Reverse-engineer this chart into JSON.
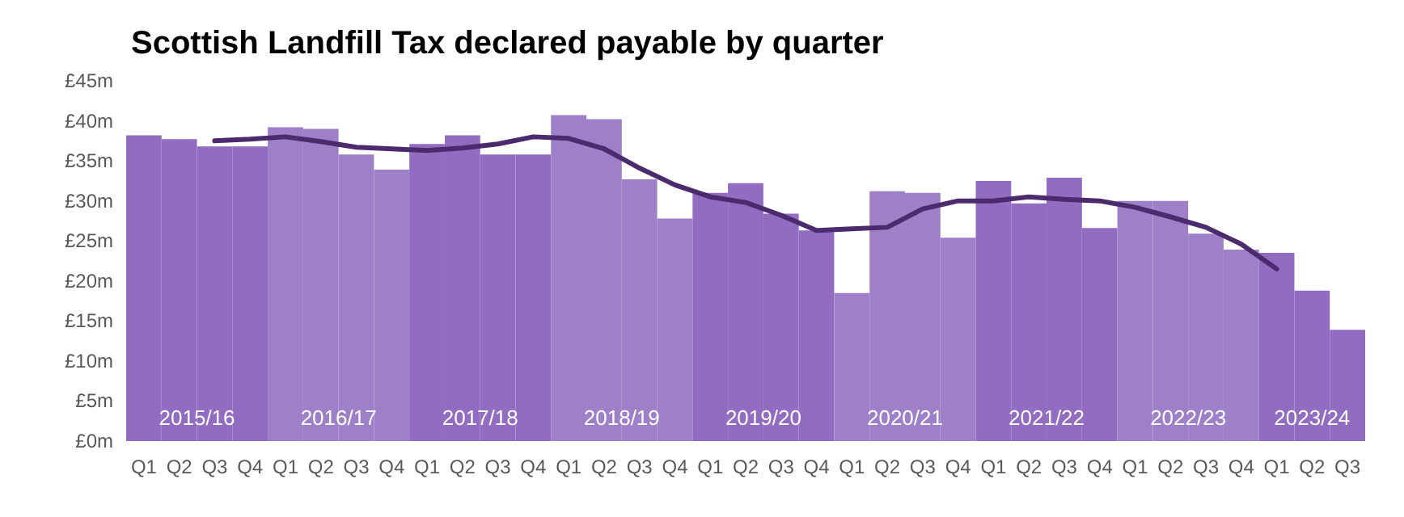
{
  "chart_data": {
    "type": "bar",
    "title": "Scottish Landfill Tax declared payable by quarter",
    "categories": [
      "Q1",
      "Q2",
      "Q3",
      "Q4",
      "Q1",
      "Q2",
      "Q3",
      "Q4",
      "Q1",
      "Q2",
      "Q3",
      "Q4",
      "Q1",
      "Q2",
      "Q3",
      "Q4",
      "Q1",
      "Q2",
      "Q3",
      "Q4",
      "Q1",
      "Q2",
      "Q3",
      "Q4",
      "Q1",
      "Q2",
      "Q3",
      "Q4",
      "Q1",
      "Q2",
      "Q3",
      "Q4",
      "Q1",
      "Q2",
      "Q3"
    ],
    "series": [
      {
        "values": [
          38.2,
          37.7,
          36.8,
          36.8,
          39.2,
          39.0,
          35.8,
          33.9,
          37.1,
          38.2,
          35.8,
          35.8,
          40.7,
          40.2,
          32.7,
          27.8,
          31.0,
          32.2,
          28.4,
          26.3,
          18.5,
          31.2,
          31.0,
          25.4,
          32.5,
          29.7,
          32.9,
          26.6,
          30.0,
          30.0,
          25.9,
          23.9,
          23.5,
          18.8,
          13.9
        ],
        "colors": [
          "#916cc0",
          "#916cc0",
          "#916cc0",
          "#916cc0",
          "#9e80c8",
          "#9e80c8",
          "#9e80c8",
          "#9e80c8",
          "#916cc0",
          "#916cc0",
          "#916cc0",
          "#916cc0",
          "#9e80c8",
          "#9e80c8",
          "#9e80c8",
          "#9e80c8",
          "#916cc0",
          "#916cc0",
          "#916cc0",
          "#916cc0",
          "#9e80c8",
          "#9e80c8",
          "#9e80c8",
          "#9e80c8",
          "#916cc0",
          "#916cc0",
          "#916cc0",
          "#916cc0",
          "#9e80c8",
          "#9e80c8",
          "#9e80c8",
          "#9e80c8",
          "#916cc0",
          "#916cc0",
          "#916cc0"
        ]
      },
      {
        "type": "line",
        "color": "#4b2a6e",
        "values": [
          null,
          null,
          37.5,
          37.7,
          38.0,
          37.4,
          36.7,
          36.5,
          36.3,
          36.6,
          37.1,
          38.0,
          37.8,
          36.5,
          34.1,
          32.0,
          30.5,
          29.8,
          28.2,
          26.3,
          26.5,
          26.7,
          29.0,
          30.0,
          30.0,
          30.5,
          30.2,
          30.0,
          29.2,
          28.0,
          26.7,
          24.6,
          21.5,
          null,
          null
        ]
      }
    ],
    "annotations": [
      "2015/16",
      "2016/17",
      "2017/18",
      "2018/19",
      "2019/20",
      "2020/21",
      "2021/22",
      "2022/23",
      "2023/24"
    ],
    "ylim": [
      0,
      45
    ],
    "yticks": [
      {
        "value": 0,
        "label": "£0m"
      },
      {
        "value": 5,
        "label": "£5m"
      },
      {
        "value": 10,
        "label": "£10m"
      },
      {
        "value": 15,
        "label": "£15m"
      },
      {
        "value": 20,
        "label": "£20m"
      },
      {
        "value": 25,
        "label": "£25m"
      },
      {
        "value": 30,
        "label": "£30m"
      },
      {
        "value": 35,
        "label": "£35m"
      },
      {
        "value": 40,
        "label": "£40m"
      },
      {
        "value": 45,
        "label": "£45m"
      }
    ],
    "grid": false,
    "marker": "none",
    "line_style": "solid"
  }
}
